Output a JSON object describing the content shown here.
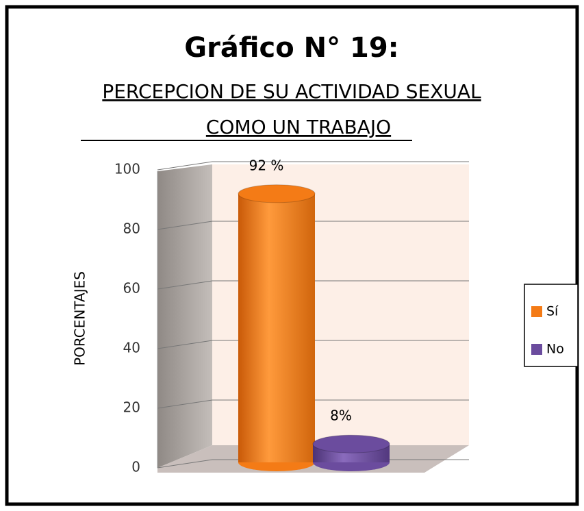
{
  "chart_data": {
    "type": "bar3d",
    "title": "Gráfico N° 19:",
    "subtitle": [
      "PERCEPCION DE SU ACTIVIDAD SEXUAL",
      "COMO UN TRABAJO"
    ],
    "y_label": "PORCENTAJES",
    "categories": [
      null
    ],
    "series": [
      {
        "name": "Sí",
        "color": "#f47b16",
        "values": [
          92
        ],
        "value_labels": [
          "92 %"
        ]
      },
      {
        "name": "No",
        "color": "#6b4c9e",
        "values": [
          8
        ],
        "value_labels": [
          "8%"
        ]
      }
    ],
    "ylim": [
      0,
      100
    ],
    "yticks": [
      0,
      20,
      40,
      60,
      80,
      100
    ],
    "grid": true,
    "legend": "right"
  }
}
